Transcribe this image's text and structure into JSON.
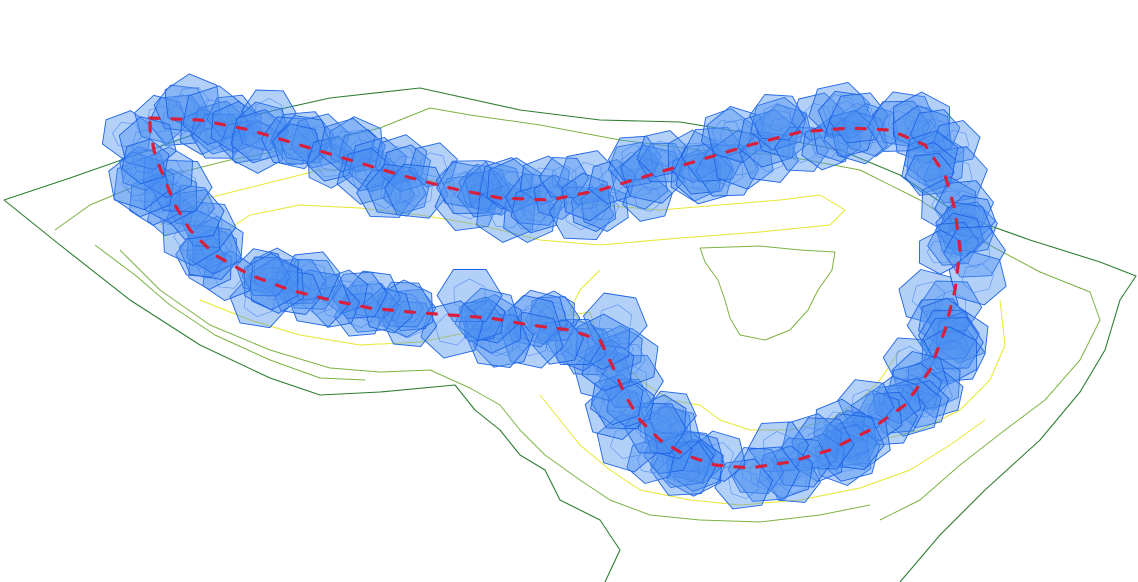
{
  "scene": {
    "description_visible_text": "",
    "colors": {
      "background": "#ffffff",
      "cell_fill": "#4a90f0",
      "cell_stroke": "#1e64e6",
      "cell_inner_stroke": "#3c7ef0",
      "path_color": "#d8203c",
      "contour_outer": "#2e7d32",
      "contour_mid": "#7cb342",
      "contour_inner": "#e6e633"
    },
    "icons": {
      "cell": "truncated-octahedron-icon",
      "path": "dashed-trajectory-icon",
      "terrain": "contour-lines-icon"
    }
  }
}
